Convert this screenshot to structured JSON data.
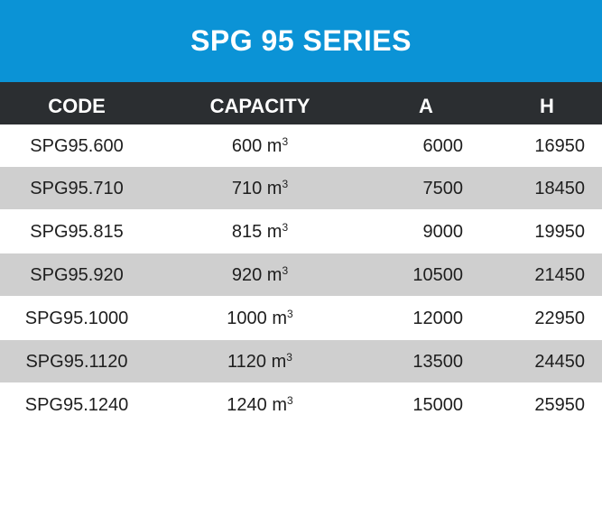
{
  "title": "SPG 95 SERIES",
  "headers": {
    "code": "CODE",
    "capacity": "CAPACITY",
    "a": "A",
    "h": "H"
  },
  "capacity_unit": "m",
  "capacity_unit_exponent": "3",
  "rows": [
    {
      "code": "SPG95.600",
      "capacity": "600",
      "a": "6000",
      "h": "16950"
    },
    {
      "code": "SPG95.710",
      "capacity": "710",
      "a": "7500",
      "h": "18450"
    },
    {
      "code": "SPG95.815",
      "capacity": "815",
      "a": "9000",
      "h": "19950"
    },
    {
      "code": "SPG95.920",
      "capacity": "920",
      "a": "10500",
      "h": "21450"
    },
    {
      "code": "SPG95.1000",
      "capacity": "1000",
      "a": "12000",
      "h": "22950"
    },
    {
      "code": "SPG95.1120",
      "capacity": "1120",
      "a": "13500",
      "h": "24450"
    },
    {
      "code": "SPG95.1240",
      "capacity": "1240",
      "a": "15000",
      "h": "25950"
    }
  ],
  "colors": {
    "title_bg": "#0b93d6",
    "header_bg": "#2b2e31",
    "shaded_row": "#cfcfcf"
  }
}
